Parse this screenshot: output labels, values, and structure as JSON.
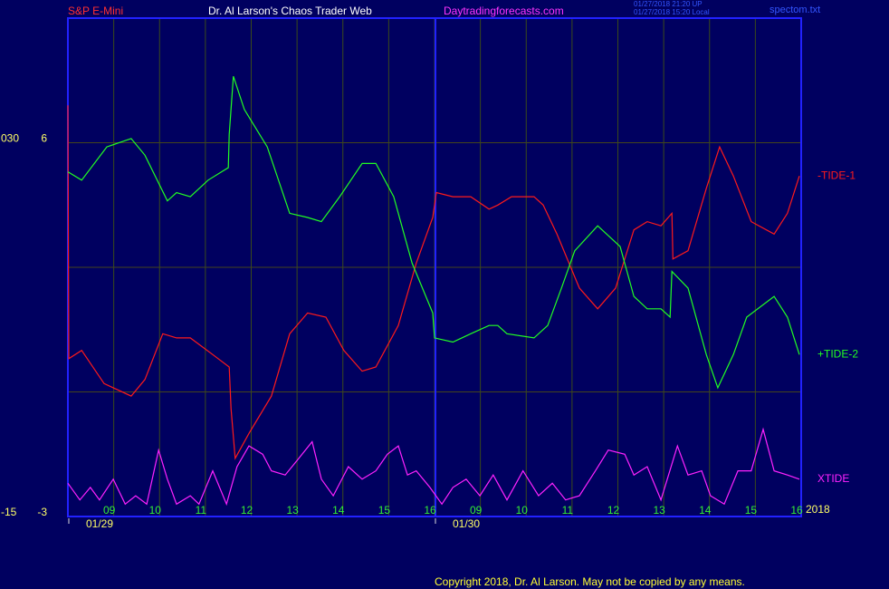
{
  "chart_data": {
    "type": "line",
    "title": "Dr. Al Larson's Chaos Trader Web",
    "instrument": "S&P E-Mini",
    "website": "Daytradingforecasts.com",
    "stamps": [
      "01/27/2018 21:20 UP",
      "01/27/2018 15:20 Local"
    ],
    "file_label": "spectom.txt",
    "copyright": "Copyright 2018, Dr. Al Larson. May not be copied by any means.",
    "year_label": "2018",
    "xlim": [
      0,
      16
    ],
    "xticks": [
      {
        "value": 1,
        "label": "09"
      },
      {
        "value": 2,
        "label": "10"
      },
      {
        "value": 3,
        "label": "11"
      },
      {
        "value": 4,
        "label": "12"
      },
      {
        "value": 5,
        "label": "13"
      },
      {
        "value": 6,
        "label": "14"
      },
      {
        "value": 7,
        "label": "15"
      },
      {
        "value": 8,
        "label": "16"
      },
      {
        "value": 9,
        "label": "09"
      },
      {
        "value": 10,
        "label": "10"
      },
      {
        "value": 11,
        "label": "11"
      },
      {
        "value": 12,
        "label": "12"
      },
      {
        "value": 13,
        "label": "13"
      },
      {
        "value": 14,
        "label": "14"
      },
      {
        "value": 15,
        "label": "15"
      },
      {
        "value": 16,
        "label": "16"
      }
    ],
    "date_ticks": [
      {
        "value": 0,
        "label": "01/29"
      },
      {
        "value": 8,
        "label": "01/30"
      }
    ],
    "ylim": [
      -3,
      9
    ],
    "yticks": [
      -3,
      6
    ],
    "ygrid": [
      0,
      3,
      6
    ],
    "y2lim": [
      -15,
      45
    ],
    "y2ticks": [
      -15,
      {
        "value": 30,
        "label": "030"
      }
    ],
    "grid": true,
    "series": [
      {
        "name": "-TIDE-1",
        "color": "#ff1a1a",
        "x": [
          0,
          0.02,
          0.3,
          0.79,
          1.38,
          1.68,
          2.07,
          2.37,
          2.67,
          3.16,
          3.52,
          3.56,
          3.65,
          3.95,
          4.44,
          4.84,
          5.23,
          5.63,
          6.02,
          6.42,
          6.72,
          7.21,
          7.6,
          7.96,
          8.04,
          8.4,
          8.79,
          9.19,
          9.38,
          9.68,
          10.17,
          10.37,
          10.67,
          11.16,
          11.56,
          11.95,
          12.35,
          12.64,
          12.94,
          13.18,
          13.2,
          13.53,
          13.93,
          14.22,
          14.52,
          14.91,
          15.41,
          15.7,
          15.96
        ],
        "values": [
          6.9,
          0.8,
          1.0,
          0.2,
          -0.1,
          0.3,
          1.4,
          1.3,
          1.3,
          0.9,
          0.6,
          -0.4,
          -1.6,
          -1.0,
          -0.1,
          1.4,
          1.9,
          1.8,
          1.0,
          0.5,
          0.6,
          1.6,
          3.1,
          4.2,
          4.8,
          4.7,
          4.7,
          4.4,
          4.5,
          4.7,
          4.7,
          4.5,
          3.8,
          2.5,
          2.0,
          2.5,
          3.9,
          4.1,
          4.0,
          4.3,
          3.2,
          3.4,
          4.9,
          5.9,
          5.2,
          4.1,
          3.8,
          4.3,
          5.2
        ]
      },
      {
        "name": "+TIDE-2",
        "color": "#22ff22",
        "x": [
          0,
          0.3,
          0.85,
          1.38,
          1.68,
          2.17,
          2.37,
          2.67,
          3.06,
          3.5,
          3.52,
          3.61,
          3.85,
          4.35,
          4.84,
          5.23,
          5.53,
          5.93,
          6.42,
          6.72,
          7.11,
          7.51,
          7.96,
          8.0,
          8.4,
          8.79,
          9.19,
          9.38,
          9.58,
          10.17,
          10.47,
          10.77,
          11.06,
          11.56,
          12.05,
          12.35,
          12.64,
          12.94,
          13.14,
          13.18,
          13.53,
          13.93,
          14.18,
          14.52,
          14.81,
          15.41,
          15.7,
          15.96
        ],
        "values": [
          5.3,
          5.1,
          5.9,
          6.1,
          5.7,
          4.6,
          4.8,
          4.7,
          5.1,
          5.4,
          6.2,
          7.6,
          6.8,
          5.9,
          4.3,
          4.2,
          4.1,
          4.7,
          5.5,
          5.5,
          4.7,
          3.1,
          1.9,
          1.3,
          1.2,
          1.4,
          1.6,
          1.6,
          1.4,
          1.3,
          1.6,
          2.5,
          3.4,
          4.0,
          3.5,
          2.3,
          2.0,
          2.0,
          1.8,
          2.9,
          2.5,
          0.9,
          0.1,
          0.9,
          1.8,
          2.3,
          1.8,
          0.9
        ]
      },
      {
        "name": "XTIDE",
        "color": "#ff22ff",
        "x": [
          0,
          0.26,
          0.49,
          0.69,
          0.99,
          1.25,
          1.48,
          1.72,
          1.98,
          2.17,
          2.37,
          2.67,
          2.86,
          3.16,
          3.46,
          3.69,
          3.95,
          4.25,
          4.44,
          4.74,
          5.04,
          5.33,
          5.53,
          5.79,
          6.12,
          6.42,
          6.72,
          6.97,
          7.21,
          7.41,
          7.6,
          7.9,
          8.16,
          8.4,
          8.69,
          8.99,
          9.28,
          9.58,
          9.93,
          10.27,
          10.57,
          10.86,
          11.16,
          11.51,
          11.79,
          12.15,
          12.35,
          12.64,
          12.94,
          13.3,
          13.53,
          13.83,
          14.02,
          14.32,
          14.62,
          14.91,
          15.17,
          15.41,
          15.7,
          15.96
        ],
        "values": [
          -2.2,
          -2.6,
          -2.3,
          -2.6,
          -2.1,
          -2.7,
          -2.5,
          -2.7,
          -1.4,
          -2.1,
          -2.7,
          -2.5,
          -2.7,
          -1.9,
          -2.7,
          -1.8,
          -1.3,
          -1.5,
          -1.9,
          -2.0,
          -1.6,
          -1.2,
          -2.1,
          -2.5,
          -1.8,
          -2.1,
          -1.9,
          -1.5,
          -1.3,
          -2.0,
          -1.9,
          -2.3,
          -2.7,
          -2.3,
          -2.1,
          -2.5,
          -2.0,
          -2.6,
          -1.9,
          -2.5,
          -2.2,
          -2.6,
          -2.5,
          -1.9,
          -1.4,
          -1.5,
          -2.0,
          -1.8,
          -2.6,
          -1.3,
          -2.0,
          -1.9,
          -2.5,
          -2.7,
          -1.9,
          -1.9,
          -0.9,
          -1.9,
          -2.0,
          -2.1
        ]
      }
    ]
  }
}
